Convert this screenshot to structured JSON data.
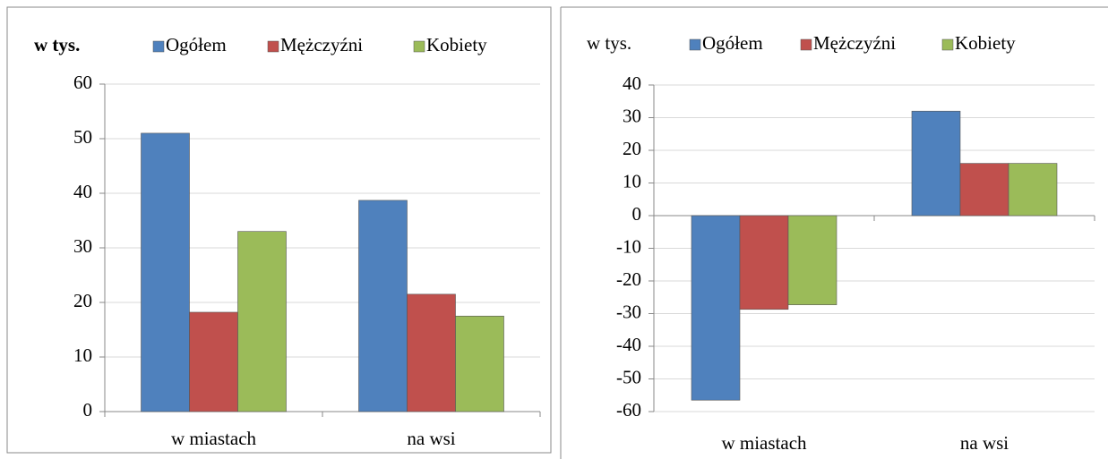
{
  "chart_data": [
    {
      "type": "bar",
      "y_label": "w tys.",
      "categories": [
        "w miastach",
        "na wsi"
      ],
      "series": [
        {
          "name": "Ogółem",
          "color": "#4f81bd",
          "values": [
            51,
            38.7
          ]
        },
        {
          "name": "Mężczyźni",
          "color": "#c0504d",
          "values": [
            18.2,
            21.5
          ]
        },
        {
          "name": "Kobiety",
          "color": "#9bbb59",
          "values": [
            33,
            17.5
          ]
        }
      ],
      "ylim": [
        0,
        60
      ],
      "yticks": [
        0,
        10,
        20,
        30,
        40,
        50,
        60
      ],
      "grid": true,
      "legend": "top"
    },
    {
      "type": "bar",
      "y_label": "w tys.",
      "categories": [
        "w miastach",
        "na wsi"
      ],
      "series": [
        {
          "name": "Ogółem",
          "color": "#4f81bd",
          "values": [
            -56.5,
            32
          ]
        },
        {
          "name": "Mężczyźni",
          "color": "#c0504d",
          "values": [
            -28.7,
            16
          ]
        },
        {
          "name": "Kobiety",
          "color": "#9bbb59",
          "values": [
            -27.3,
            16
          ]
        }
      ],
      "ylim": [
        -60,
        40
      ],
      "yticks": [
        -60,
        -50,
        -40,
        -30,
        -20,
        -10,
        0,
        10,
        20,
        30,
        40
      ],
      "grid": true,
      "legend": "top"
    }
  ]
}
